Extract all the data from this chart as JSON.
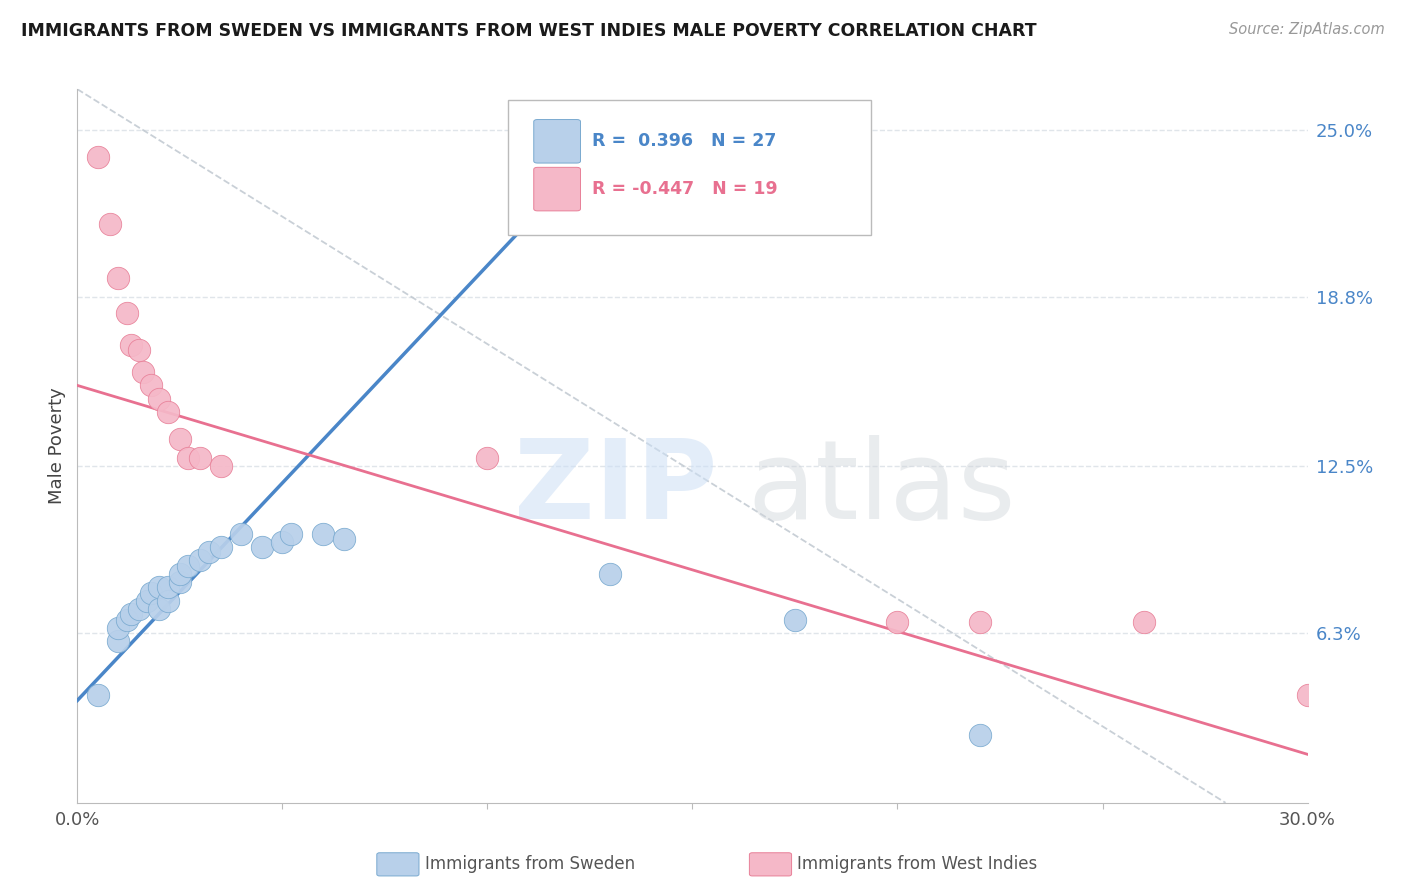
{
  "title": "IMMIGRANTS FROM SWEDEN VS IMMIGRANTS FROM WEST INDIES MALE POVERTY CORRELATION CHART",
  "source": "Source: ZipAtlas.com",
  "ylabel": "Male Poverty",
  "right_yticks": [
    "25.0%",
    "18.8%",
    "12.5%",
    "6.3%"
  ],
  "right_ytick_vals": [
    0.25,
    0.188,
    0.125,
    0.063
  ],
  "xlim": [
    0.0,
    0.3
  ],
  "ylim": [
    0.0,
    0.265
  ],
  "legend_blue_r": "0.396",
  "legend_blue_n": "27",
  "legend_pink_r": "-0.447",
  "legend_pink_n": "19",
  "legend_label_blue": "Immigrants from Sweden",
  "legend_label_pink": "Immigrants from West Indies",
  "blue_scatter_color": "#b8d0ea",
  "pink_scatter_color": "#f5b8c8",
  "blue_edge_color": "#7aaad0",
  "pink_edge_color": "#e88098",
  "blue_line_color": "#4a86c8",
  "pink_line_color": "#e87090",
  "diagonal_color": "#c0c8d0",
  "sweden_x": [
    0.005,
    0.01,
    0.01,
    0.012,
    0.013,
    0.015,
    0.017,
    0.018,
    0.02,
    0.02,
    0.022,
    0.022,
    0.025,
    0.025,
    0.027,
    0.03,
    0.032,
    0.035,
    0.04,
    0.045,
    0.05,
    0.052,
    0.06,
    0.065,
    0.13,
    0.175,
    0.22
  ],
  "sweden_y": [
    0.04,
    0.06,
    0.065,
    0.068,
    0.07,
    0.072,
    0.075,
    0.078,
    0.072,
    0.08,
    0.075,
    0.08,
    0.082,
    0.085,
    0.088,
    0.09,
    0.093,
    0.095,
    0.1,
    0.095,
    0.097,
    0.1,
    0.1,
    0.098,
    0.085,
    0.068,
    0.025
  ],
  "westindies_x": [
    0.005,
    0.008,
    0.01,
    0.012,
    0.013,
    0.015,
    0.016,
    0.018,
    0.02,
    0.022,
    0.025,
    0.027,
    0.03,
    0.035,
    0.1,
    0.2,
    0.22,
    0.26,
    0.3
  ],
  "westindies_y": [
    0.24,
    0.215,
    0.195,
    0.182,
    0.17,
    0.168,
    0.16,
    0.155,
    0.15,
    0.145,
    0.135,
    0.128,
    0.128,
    0.125,
    0.128,
    0.067,
    0.067,
    0.067,
    0.04
  ],
  "background_color": "#ffffff",
  "grid_color": "#e0e5ea",
  "blue_line_x0": 0.0,
  "blue_line_y0": 0.038,
  "blue_line_x1": 0.13,
  "blue_line_y1": 0.248,
  "pink_line_x0": 0.0,
  "pink_line_y0": 0.155,
  "pink_line_x1": 0.3,
  "pink_line_y1": 0.018
}
